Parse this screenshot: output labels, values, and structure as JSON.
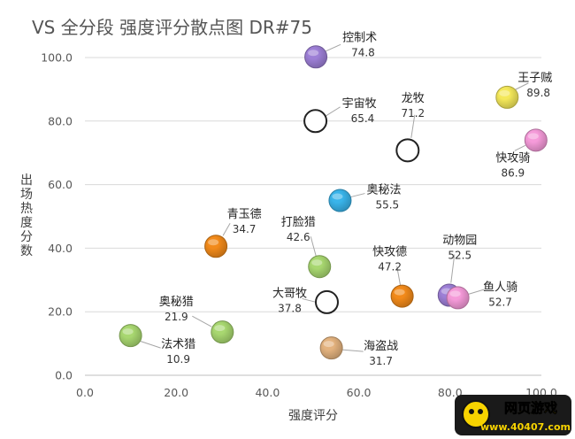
{
  "chart_data": {
    "type": "scatter",
    "title": "VS 全分段 强度评分散点图 DR#75",
    "xlabel": "强度评分",
    "ylabel": "出场热度分数",
    "xlim": [
      0,
      100
    ],
    "ylim": [
      0,
      100
    ],
    "xticks": [
      "0.0",
      "20.0",
      "40.0",
      "60.0",
      "80.0",
      "100.0"
    ],
    "yticks": [
      "0.0",
      "20.0",
      "40.0",
      "60.0",
      "80.0",
      "100.0"
    ],
    "grid": "horizontal",
    "points": [
      {
        "name": "控制术",
        "value": "74.8",
        "x": 50.6,
        "y": 100.2,
        "color": "#9d7fd6"
      },
      {
        "name": "王子贼",
        "value": "89.8",
        "x": 92.5,
        "y": 87.5,
        "color": "#f4e85a"
      },
      {
        "name": "宇宙牧",
        "value": "65.4",
        "x": 50.5,
        "y": 80.0,
        "color": "#ffffff"
      },
      {
        "name": "龙牧",
        "value": "71.2",
        "x": 70.7,
        "y": 70.8,
        "color": "#ffffff"
      },
      {
        "name": "快攻骑",
        "value": "86.9",
        "x": 98.8,
        "y": 74.0,
        "color": "#f59ad9"
      },
      {
        "name": "奥秘法",
        "value": "55.5",
        "x": 55.9,
        "y": 55.0,
        "color": "#39b4ea"
      },
      {
        "name": "青玉德",
        "value": "34.7",
        "x": 28.7,
        "y": 40.6,
        "color": "#f28a1a"
      },
      {
        "name": "打脸猎",
        "value": "42.6",
        "x": 51.4,
        "y": 34.2,
        "color": "#a8d770"
      },
      {
        "name": "动物园",
        "value": "52.5",
        "x": 79.8,
        "y": 25.2,
        "color": "#9d7fd6"
      },
      {
        "name": "快攻德",
        "value": "47.2",
        "x": 69.5,
        "y": 24.9,
        "color": "#f28a1a"
      },
      {
        "name": "鱼人骑",
        "value": "52.7",
        "x": 81.7,
        "y": 24.4,
        "color": "#f59ad9"
      },
      {
        "name": "大哥牧",
        "value": "37.8",
        "x": 53.0,
        "y": 23.0,
        "color": "#ffffff"
      },
      {
        "name": "奥秘猎",
        "value": "21.9",
        "x": 30.1,
        "y": 13.6,
        "color": "#a8d770"
      },
      {
        "name": "法术猎",
        "value": "10.9",
        "x": 10.0,
        "y": 12.5,
        "color": "#a8d770"
      },
      {
        "name": "海盗战",
        "value": "31.7",
        "x": 54.0,
        "y": 8.6,
        "color": "#e3b27e"
      }
    ]
  },
  "watermark": {
    "text1": "网页游戏",
    "text2": "www.40407.com"
  }
}
